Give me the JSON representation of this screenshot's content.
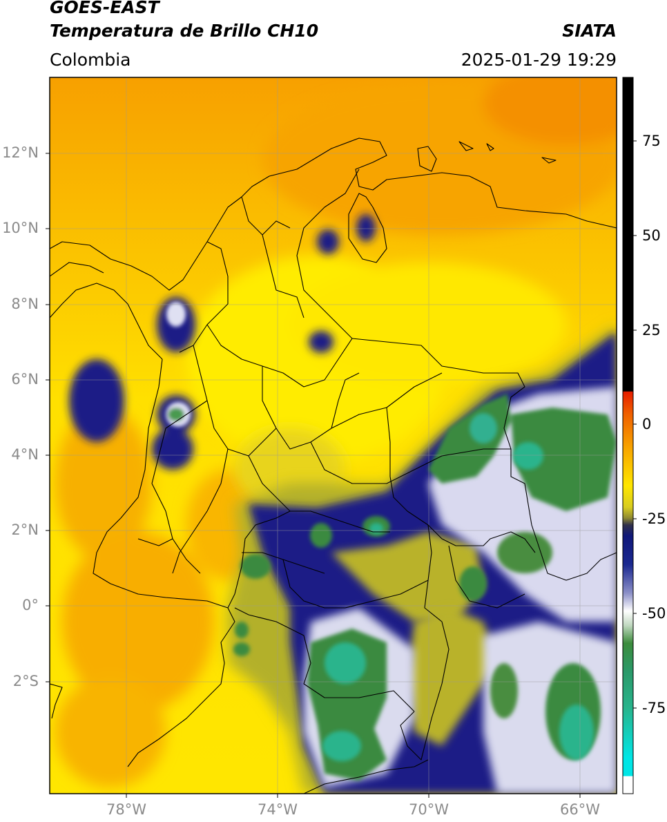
{
  "header": {
    "satellite": "GOES-EAST",
    "product": "Temperatura de Brillo CH10",
    "agency": "SIATA",
    "region": "Colombia",
    "datetime": "2025-01-29 19:29"
  },
  "map": {
    "lat_labels": [
      "12°N",
      "10°N",
      "8°N",
      "6°N",
      "4°N",
      "2°N",
      "0°",
      "2°S"
    ],
    "lon_labels": [
      "78°W",
      "74°W",
      "70°W",
      "66°W"
    ]
  },
  "colorbar": {
    "tick_labels": [
      "75",
      "50",
      "25",
      "0",
      "-25",
      "-50",
      "-75"
    ],
    "colors": {
      "warm_orange": "#f7a800",
      "yellow": "#ffe600",
      "olive": "#a8a830",
      "navy": "#10187a",
      "white": "#ffffff",
      "green": "#3c8c3c",
      "teal": "#28b48c",
      "black": "#000000",
      "red": "#e63200",
      "cyan": "#00e6e6"
    }
  }
}
